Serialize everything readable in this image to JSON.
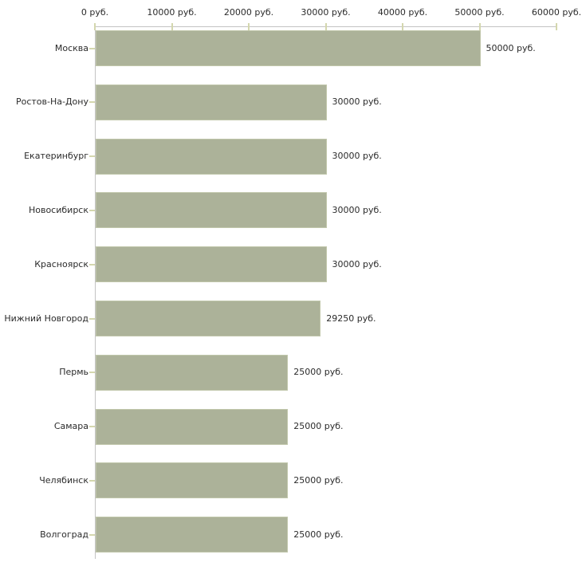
{
  "chart_data": {
    "type": "bar",
    "orientation": "horizontal",
    "title": "",
    "categories": [
      "Москва",
      "Ростов-На-Дону",
      "Екатеринбург",
      "Новосибирск",
      "Красноярск",
      "Нижний Новгород",
      "Пермь",
      "Самара",
      "Челябинск",
      "Волгоград"
    ],
    "values": [
      50000,
      30000,
      30000,
      30000,
      30000,
      29250,
      25000,
      25000,
      25000,
      25000
    ],
    "value_labels": [
      "50000 руб.",
      "30000 руб.",
      "30000 руб.",
      "30000 руб.",
      "30000 руб.",
      "29250 руб.",
      "25000 руб.",
      "25000 руб.",
      "25000 руб.",
      "25000 руб."
    ],
    "unit": "руб.",
    "x_axis": {
      "position": "top",
      "min": 0,
      "max": 60000,
      "ticks": [
        0,
        10000,
        20000,
        30000,
        40000,
        50000,
        60000
      ],
      "tick_labels": [
        "0 руб.",
        "10000 руб.",
        "20000 руб.",
        "30000 руб.",
        "40000 руб.",
        "50000 руб.",
        "60000 руб."
      ]
    },
    "grid": false,
    "legend": false,
    "colors": {
      "background": "#ffffff",
      "bar_fill": "#acb299",
      "bar_border": "#c0c6aa",
      "axis_line": "#c3c3c3",
      "tick_mark": "#d4d7ae",
      "text": "#2b2b2b"
    }
  }
}
